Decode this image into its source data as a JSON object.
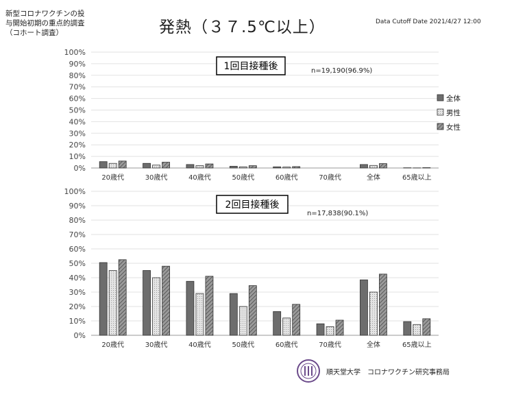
{
  "header": {
    "subtitle": "新型コロナワクチンの投\n与開始初期の重点的調査\n（コホート調査）",
    "title": "発熱（３７.5℃以上）",
    "cutoff": "Data Cutoff Date 2021/4/27 12:00"
  },
  "footer": {
    "org": "順天堂大学　コロナワクチン研究事務局",
    "logo_label": "順天堂大学ロゴ"
  },
  "colors": {
    "all": "#6d6d6d",
    "male": "#d0d0d0",
    "female": "#8a8a8a"
  },
  "chart_data": [
    {
      "type": "bar",
      "title": "1回目接種後",
      "annotation": "n=19,190(96.9%)",
      "categories": [
        "20歳代",
        "30歳代",
        "40歳代",
        "50歳代",
        "60歳代",
        "70歳代",
        "全体",
        "65歳以上"
      ],
      "series": [
        {
          "name": "全体",
          "values": [
            5.5,
            4.0,
            3.0,
            1.5,
            1.0,
            0,
            3.0,
            0.2
          ]
        },
        {
          "name": "男性",
          "values": [
            4.0,
            2.5,
            2.0,
            1.0,
            0.8,
            0,
            2.2,
            0.1
          ]
        },
        {
          "name": "女性",
          "values": [
            6.0,
            5.0,
            3.5,
            2.0,
            1.2,
            0,
            3.8,
            0.3
          ]
        }
      ],
      "ylim": [
        0,
        100
      ],
      "yticks": [
        "0%",
        "10%",
        "20%",
        "30%",
        "40%",
        "50%",
        "60%",
        "70%",
        "80%",
        "90%",
        "100%"
      ],
      "legend": "right"
    },
    {
      "type": "bar",
      "title": "2回目接種後",
      "annotation": "n=17,838(90.1%)",
      "categories": [
        "20歳代",
        "30歳代",
        "40歳代",
        "50歳代",
        "60歳代",
        "70歳代",
        "全体",
        "65歳以上"
      ],
      "series": [
        {
          "name": "全体",
          "values": [
            50.5,
            45.0,
            37.5,
            29.0,
            16.5,
            8.0,
            38.5,
            9.5
          ]
        },
        {
          "name": "男性",
          "values": [
            45.0,
            40.0,
            29.0,
            20.0,
            12.0,
            6.0,
            30.0,
            7.5
          ]
        },
        {
          "name": "女性",
          "values": [
            52.5,
            48.0,
            41.0,
            34.5,
            21.5,
            10.5,
            42.5,
            11.5
          ]
        }
      ],
      "ylim": [
        0,
        100
      ],
      "yticks": [
        "0%",
        "10%",
        "20%",
        "30%",
        "40%",
        "50%",
        "60%",
        "70%",
        "80%",
        "90%",
        "100%"
      ]
    }
  ]
}
